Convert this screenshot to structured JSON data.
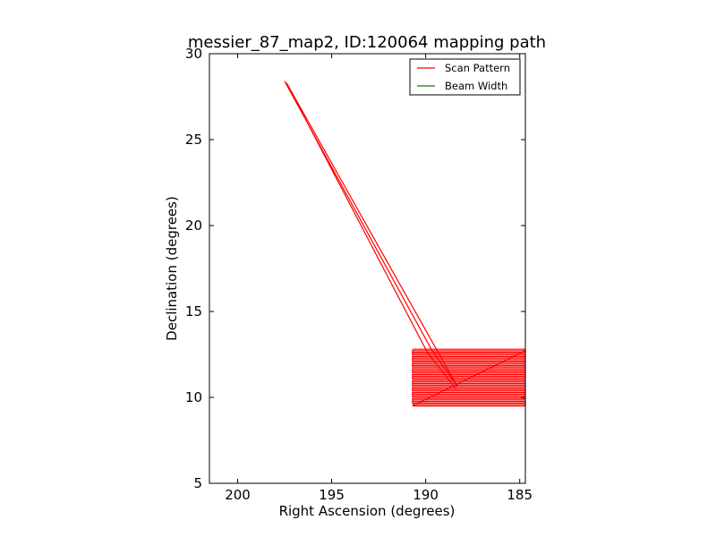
{
  "chart_data": {
    "type": "line",
    "title": "messier_87_map2, ID:120064 mapping path",
    "xlabel": "Right Ascension (degrees)",
    "ylabel": "Declination (degrees)",
    "xlim": [
      201.5,
      184.7
    ],
    "ylim": [
      5,
      30
    ],
    "x_inverted": true,
    "xticks": [
      200,
      195,
      190,
      185
    ],
    "xtick_labels": [
      "200",
      "195",
      "190",
      "185"
    ],
    "yticks": [
      5,
      10,
      15,
      20,
      25,
      30
    ],
    "ytick_labels": [
      "5",
      "10",
      "15",
      "20",
      "25",
      "30"
    ],
    "grid": false,
    "legend_position": "top-right",
    "series": [
      {
        "name": "Scan Pattern",
        "color": "#ff0000",
        "slew_path": [
          [
            197.5,
            28.4
          ],
          [
            189.7,
            12.8
          ],
          [
            188.3,
            10.6
          ],
          [
            197.4,
            28.3
          ],
          [
            189.9,
            12.6
          ],
          [
            188.4,
            10.5
          ]
        ],
        "raster": {
          "ra_min": 184.7,
          "ra_max": 190.7,
          "dec_min": 9.5,
          "dec_max": 12.8,
          "rows": 20
        }
      },
      {
        "name": "Beam Width",
        "color": "#008000"
      }
    ]
  }
}
